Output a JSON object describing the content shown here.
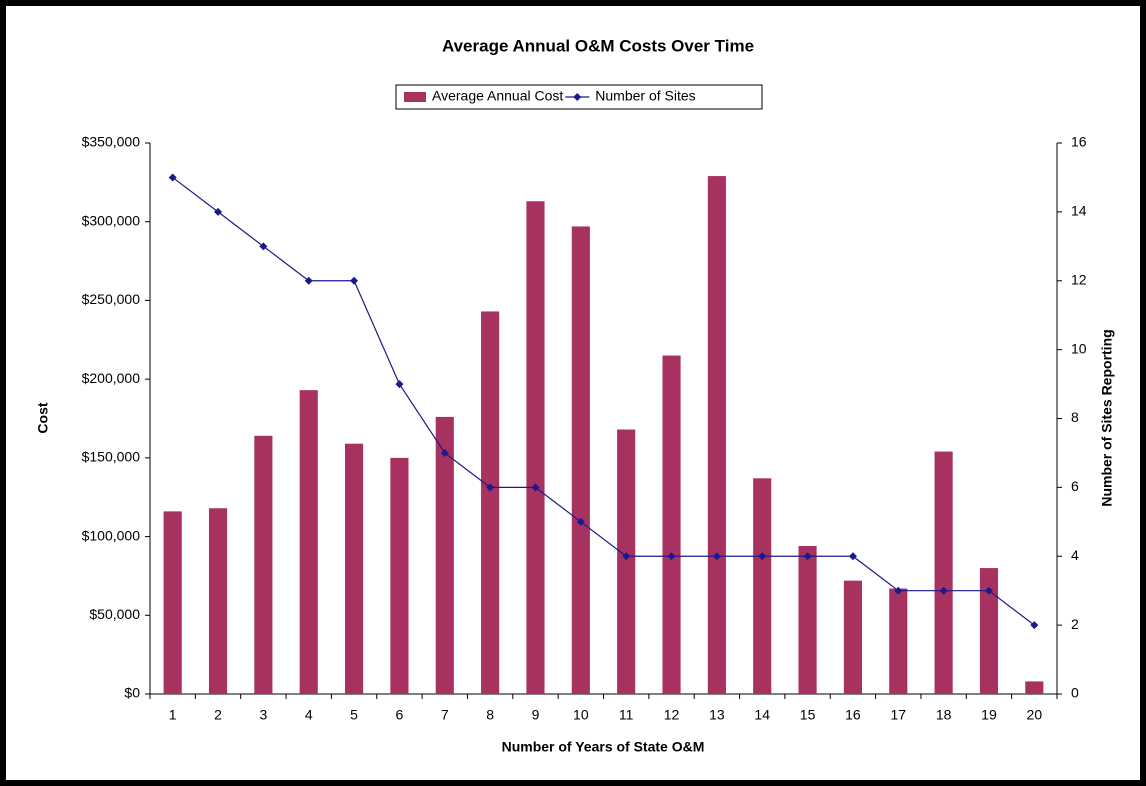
{
  "chart_data": {
    "type": "bar-line",
    "title": "Average Annual O&M Costs Over Time",
    "x_label": "Number of Years of State O&M",
    "y_label": "Cost",
    "y2_label": "Number of Sites Reporting",
    "categories": [
      "1",
      "2",
      "3",
      "4",
      "5",
      "6",
      "7",
      "8",
      "9",
      "10",
      "11",
      "12",
      "13",
      "14",
      "15",
      "16",
      "17",
      "18",
      "19",
      "20"
    ],
    "series": [
      {
        "name": "Average Annual Cost",
        "type": "bar",
        "color": "#a8325f",
        "values": [
          116000,
          118000,
          164000,
          193000,
          159000,
          150000,
          176000,
          243000,
          313000,
          297000,
          168000,
          215000,
          329000,
          137000,
          94000,
          72000,
          67000,
          154000,
          80000,
          8000
        ]
      },
      {
        "name": "Number of Sites",
        "type": "line",
        "axis": "y2",
        "color": "#1a1a8c",
        "values": [
          15,
          14,
          13,
          12,
          12,
          9,
          7,
          6,
          6,
          5,
          4,
          4,
          4,
          4,
          4,
          4,
          3,
          3,
          3,
          2
        ]
      }
    ],
    "ylim": [
      0,
      350000
    ],
    "yticks": [
      {
        "value": 0,
        "label": "$0"
      },
      {
        "value": 50000,
        "label": "$50,000"
      },
      {
        "value": 100000,
        "label": "$100,000"
      },
      {
        "value": 150000,
        "label": "$150,000"
      },
      {
        "value": 200000,
        "label": "$200,000"
      },
      {
        "value": 250000,
        "label": "$250,000"
      },
      {
        "value": 300000,
        "label": "$300,000"
      },
      {
        "value": 350000,
        "label": "$350,000"
      }
    ],
    "y2lim": [
      0,
      16
    ],
    "y2ticks": [
      0,
      2,
      4,
      6,
      8,
      10,
      12,
      14,
      16
    ],
    "grid": false,
    "legend": "top"
  }
}
